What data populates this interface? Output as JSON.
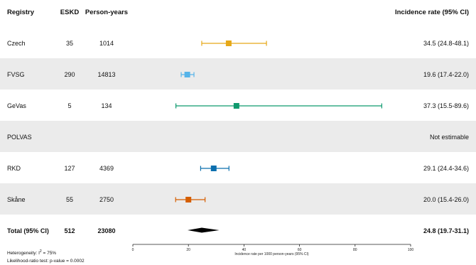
{
  "headers": {
    "registry": "Registry",
    "eskd": "ESKD",
    "person_years": "Person-years",
    "rate": "Incidence rate (95% CI)"
  },
  "rows": [
    {
      "registry": "Czech",
      "eskd": "35",
      "person_years": "1014",
      "rate_text": "34.5 (24.8-48.1)"
    },
    {
      "registry": "FVSG",
      "eskd": "290",
      "person_years": "14813",
      "rate_text": "19.6 (17.4-22.0)"
    },
    {
      "registry": "GeVas",
      "eskd": "5",
      "person_years": "134",
      "rate_text": "37.3 (15.5-89.6)"
    },
    {
      "registry": "POLVAS",
      "eskd": "",
      "person_years": "",
      "rate_text": "Not estimable"
    },
    {
      "registry": "RKD",
      "eskd": "127",
      "person_years": "4369",
      "rate_text": "29.1 (24.4-34.6)"
    },
    {
      "registry": "Skåne",
      "eskd": "55",
      "person_years": "2750",
      "rate_text": "20.0 (15.4-26.0)"
    }
  ],
  "total": {
    "registry": "Total (95% CI)",
    "eskd": "512",
    "person_years": "23080",
    "rate_text": "24.8 (19.7-31.1)"
  },
  "footnotes": {
    "heterogeneity_prefix": "Heterogeneity: I",
    "heterogeneity_sup": "2",
    "heterogeneity_value": " = 75%",
    "lr_test": "Likelihood-ratio test: p-value = 0.0002"
  },
  "chart_data": {
    "type": "forest",
    "xlabel": "Incidence rate per 1000 person-years (95% CI)",
    "xlim": [
      0,
      100
    ],
    "xticks": [
      0,
      20,
      40,
      60,
      80,
      100
    ],
    "series": [
      {
        "name": "Czech",
        "estimate": 34.5,
        "lower": 24.8,
        "upper": 48.1,
        "color": "#e6a817"
      },
      {
        "name": "FVSG",
        "estimate": 19.6,
        "lower": 17.4,
        "upper": 22.0,
        "color": "#56b4e9"
      },
      {
        "name": "GeVas",
        "estimate": 37.3,
        "lower": 15.5,
        "upper": 89.6,
        "color": "#0f9a6e"
      },
      {
        "name": "POLVAS",
        "estimate": null,
        "lower": null,
        "upper": null,
        "color": "#999999"
      },
      {
        "name": "RKD",
        "estimate": 29.1,
        "lower": 24.4,
        "upper": 34.6,
        "color": "#0b6fae"
      },
      {
        "name": "Skåne",
        "estimate": 20.0,
        "lower": 15.4,
        "upper": 26.0,
        "color": "#d55e00"
      }
    ],
    "pooled": {
      "name": "Total (95% CI)",
      "estimate": 24.8,
      "lower": 19.7,
      "upper": 31.1,
      "color": "#000000"
    }
  }
}
